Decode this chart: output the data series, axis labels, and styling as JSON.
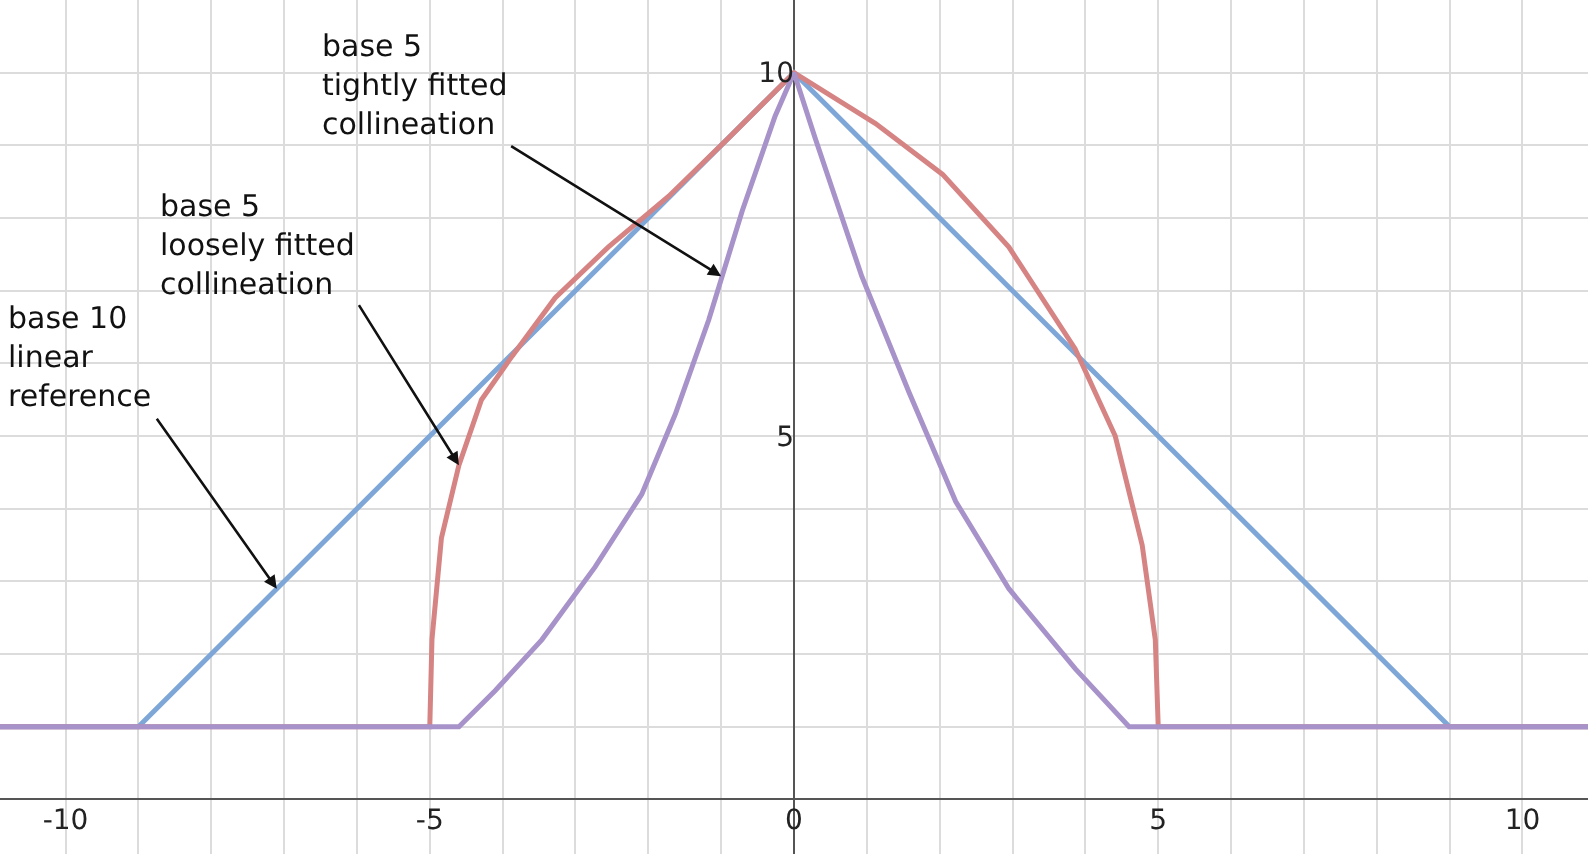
{
  "chart_data": {
    "type": "line",
    "series": [
      {
        "color": "#7ea7d8",
        "x": [
          -10.9,
          -9,
          0,
          9,
          10.9
        ],
        "values": [
          1,
          1,
          10,
          1,
          1
        ]
      },
      {
        "color": "#d68383",
        "x": [
          -10.9,
          -5,
          -4.97,
          -4.84,
          -4.6,
          -4.29,
          -3.87,
          -3.28,
          -2.55,
          -1.72,
          -0.9,
          0,
          1.12,
          2.04,
          2.95,
          3.86,
          4.41,
          4.78,
          4.96,
          5,
          10.9
        ],
        "values": [
          1,
          1,
          2.2,
          3.6,
          4.6,
          5.5,
          6.1,
          6.9,
          7.6,
          8.3,
          9.1,
          10,
          9.3,
          8.6,
          7.6,
          6.2,
          5,
          3.5,
          2.2,
          1,
          1
        ]
      },
      {
        "color": "#a792c9",
        "x": [
          -10.9,
          -4.6,
          -4.1,
          -3.46,
          -2.73,
          -2.09,
          -1.63,
          -1.17,
          -0.71,
          -0.26,
          0,
          0.29,
          0.93,
          1.58,
          2.22,
          2.95,
          3.86,
          4.6,
          10.9
        ],
        "values": [
          1,
          1,
          1.5,
          2.2,
          3.2,
          4.2,
          5.3,
          6.6,
          8.1,
          9.4,
          10,
          9.1,
          7.2,
          5.6,
          4.1,
          2.9,
          1.8,
          1,
          1
        ]
      }
    ],
    "xlim": [
      -10.9,
      10.9
    ],
    "ylim": [
      -0.75,
      11
    ],
    "xticks": [
      -10,
      {
        "value": -9,
        "label": null
      },
      {
        "value": -8,
        "label": null
      },
      {
        "value": -7,
        "label": null
      },
      {
        "value": -6,
        "label": null
      },
      -5,
      {
        "value": -4,
        "label": null
      },
      {
        "value": -3,
        "label": null
      },
      {
        "value": -2,
        "label": null
      },
      {
        "value": -1,
        "label": null
      },
      0,
      {
        "value": 1,
        "label": null
      },
      {
        "value": 2,
        "label": null
      },
      {
        "value": 3,
        "label": null
      },
      {
        "value": 4,
        "label": null
      },
      5,
      {
        "value": 6,
        "label": null
      },
      {
        "value": 7,
        "label": null
      },
      {
        "value": 8,
        "label": null
      },
      {
        "value": 9,
        "label": null
      },
      10
    ],
    "yticks": [
      {
        "value": 1,
        "label": null
      },
      {
        "value": 2,
        "label": null
      },
      {
        "value": 3,
        "label": null
      },
      {
        "value": 4,
        "label": null
      },
      5,
      {
        "value": 6,
        "label": null
      },
      {
        "value": 7,
        "label": null
      },
      {
        "value": 8,
        "label": null
      },
      {
        "value": 9,
        "label": null
      },
      10
    ],
    "grid": true,
    "marker": "none",
    "line_style": "solid",
    "annotations": [
      {
        "text": "base 10\nlinear\nreference",
        "x": -7.1,
        "y": 2.9
      },
      {
        "text": "base 5\nloosely fitted\ncollineation",
        "x": -4.6,
        "y": 4.6
      },
      {
        "text": "base 5\ntightly fitted\ncollineation",
        "x": -1.0,
        "y": 7.2
      }
    ]
  }
}
